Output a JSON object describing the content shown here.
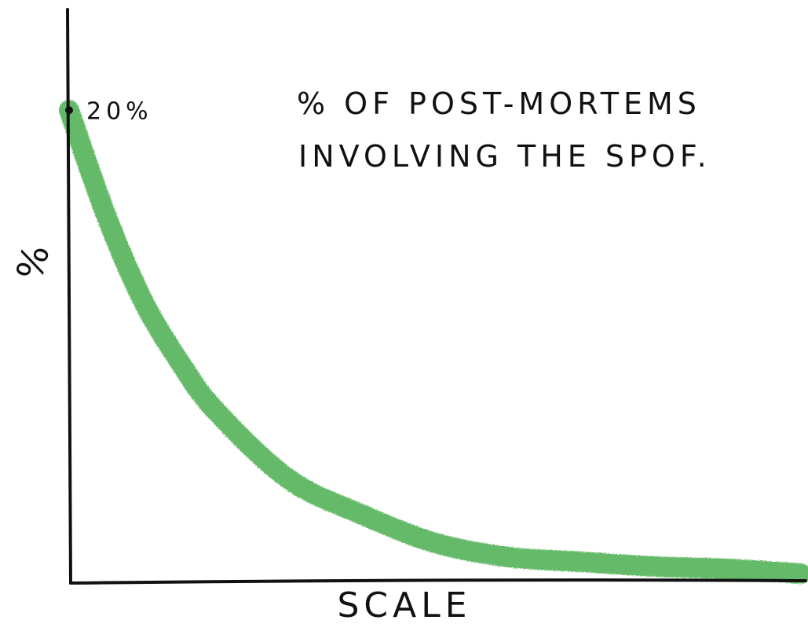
{
  "chart_data": {
    "type": "line",
    "title": "% OF POST-MORTEMS",
    "subtitle": "INVOLVING THE SPOF.",
    "xlabel": "SCALE",
    "ylabel": "%",
    "grid": false,
    "legend": "none",
    "xlim": [
      0,
      1
    ],
    "ylim": [
      0,
      23
    ],
    "series": [
      {
        "color": "#4caf50",
        "x": [
          0,
          0.05,
          0.1,
          0.15,
          0.2,
          0.3,
          0.4,
          0.5,
          0.6,
          0.7,
          0.8,
          0.9,
          1.0
        ],
        "y": [
          20,
          15.6,
          12.0,
          9.4,
          7.3,
          4.4,
          2.9,
          1.7,
          1.1,
          0.9,
          0.7,
          0.6,
          0.4
        ]
      }
    ],
    "annotations": [
      {
        "text": "20%",
        "x": 0,
        "y": 20
      }
    ],
    "colors": {
      "axis": "#111111",
      "curve": "#4caf50"
    }
  }
}
